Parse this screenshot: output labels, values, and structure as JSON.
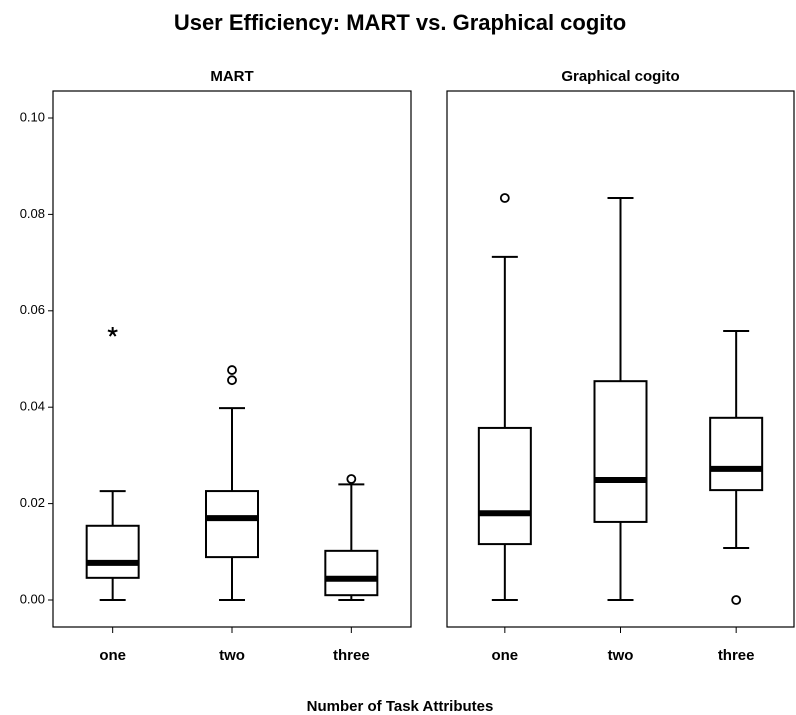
{
  "title": "User Efficiency: MART vs. Graphical cogito",
  "xlabel": "Number of Task Attributes",
  "chart_data": [
    {
      "type": "box",
      "title": "MART",
      "categories": [
        "one",
        "two",
        "three"
      ],
      "ylim": [
        -0.0056,
        0.1056
      ],
      "yticks": [
        {
          "value": 0,
          "label": "0.00"
        },
        {
          "value": 0.02,
          "label": "0.02"
        },
        {
          "value": 0.04,
          "label": "0.04"
        },
        {
          "value": 0.06,
          "label": "0.06"
        },
        {
          "value": 0.08,
          "label": "0.08"
        },
        {
          "value": 0.1,
          "label": "0.10"
        }
      ],
      "boxes": [
        {
          "min": 0,
          "q1": 0.0046,
          "median": 0.0077,
          "q3": 0.0154,
          "max": 0.0226,
          "outliers": [],
          "extremes": [
            0.0556
          ]
        },
        {
          "min": 0,
          "q1": 0.0089,
          "median": 0.017,
          "q3": 0.0226,
          "max": 0.0398,
          "outliers": [
            0.0456,
            0.0477
          ],
          "extremes": []
        },
        {
          "min": 0,
          "q1": 0.001,
          "median": 0.0044,
          "q3": 0.0102,
          "max": 0.024,
          "outliers": [
            0.0251
          ],
          "extremes": []
        }
      ]
    },
    {
      "type": "box",
      "title": "Graphical cogito",
      "categories": [
        "one",
        "two",
        "three"
      ],
      "ylim": [
        -0.0056,
        0.1056
      ],
      "boxes": [
        {
          "min": 0,
          "q1": 0.0116,
          "median": 0.018,
          "q3": 0.0357,
          "max": 0.0712,
          "outliers": [
            0.0834
          ],
          "extremes": []
        },
        {
          "min": 0,
          "q1": 0.0162,
          "median": 0.0249,
          "q3": 0.0454,
          "max": 0.0834,
          "outliers": [],
          "extremes": []
        },
        {
          "min": 0.0108,
          "q1": 0.0228,
          "median": 0.0272,
          "q3": 0.0378,
          "max": 0.0558,
          "outliers": [
            0
          ],
          "extremes": []
        }
      ]
    }
  ]
}
